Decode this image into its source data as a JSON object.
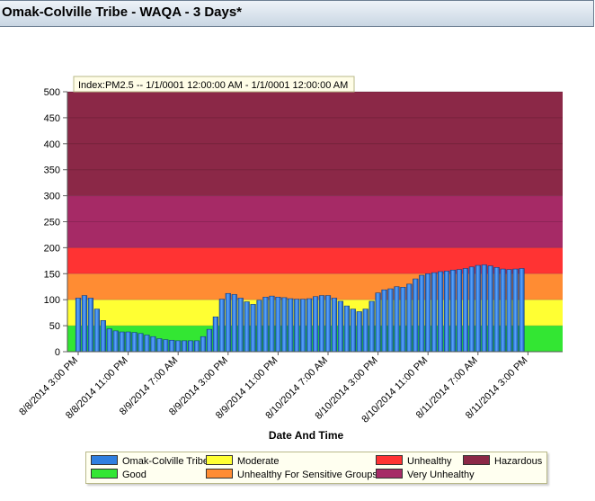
{
  "page": {
    "title": "Omak-Colville Tribe - WAQA - 3 Days*"
  },
  "chart_data": {
    "type": "bar",
    "index_label": "Index:PM2.5 -- 1/1/0001 12:00:00 AM  -  1/1/0001 12:00:00 AM",
    "xlabel": "Date And Time",
    "ylabel": "",
    "ylim": [
      0,
      500
    ],
    "yticks": [
      0,
      50,
      100,
      150,
      200,
      250,
      300,
      350,
      400,
      450,
      500
    ],
    "x_tick_labels": [
      "8/8/2014 3:00 PM",
      "8/8/2014 11:00 PM",
      "8/9/2014 7:00 AM",
      "8/9/2014 3:00 PM",
      "8/9/2014 11:00 PM",
      "8/10/2014 7:00 AM",
      "8/10/2014 3:00 PM",
      "8/10/2014 11:00 PM",
      "8/11/2014 7:00 AM",
      "8/11/2014 3:00 PM"
    ],
    "hours_per_bar": 1,
    "bands": [
      {
        "name": "Good",
        "from": 0,
        "to": 50,
        "color": "#33e633"
      },
      {
        "name": "Moderate",
        "from": 50,
        "to": 100,
        "color": "#ffff33"
      },
      {
        "name": "Unhealthy For Sensitive Groups",
        "from": 100,
        "to": 150,
        "color": "#ff8c33"
      },
      {
        "name": "Unhealthy",
        "from": 150,
        "to": 200,
        "color": "#ff3333"
      },
      {
        "name": "Very Unhealthy",
        "from": 200,
        "to": 300,
        "color": "#a62a66"
      },
      {
        "name": "Hazardous",
        "from": 300,
        "to": 500,
        "color": "#8b2847"
      }
    ],
    "series": [
      {
        "name": "Omak-Colville Tribe",
        "color": "#2f7fe0",
        "values": [
          103,
          108,
          103,
          82,
          60,
          44,
          40,
          38,
          38,
          37,
          35,
          32,
          29,
          25,
          23,
          22,
          21,
          21,
          21,
          21,
          29,
          43,
          67,
          101,
          112,
          110,
          103,
          96,
          91,
          99,
          105,
          107,
          105,
          104,
          102,
          101,
          101,
          102,
          106,
          108,
          108,
          103,
          97,
          88,
          82,
          77,
          82,
          97,
          113,
          119,
          121,
          125,
          124,
          130,
          140,
          147,
          150,
          152,
          154,
          155,
          157,
          158,
          160,
          163,
          166,
          167,
          165,
          162,
          159,
          158,
          159,
          160
        ]
      }
    ]
  },
  "legend": [
    {
      "label": "Omak-Colville Tribe",
      "color": "#2f7fe0"
    },
    {
      "label": "Moderate",
      "color": "#ffff33"
    },
    {
      "label": "Unhealthy",
      "color": "#ff3333"
    },
    {
      "label": "Hazardous",
      "color": "#8b2847"
    },
    {
      "label": "Good",
      "color": "#33e633"
    },
    {
      "label": "Unhealthy For Sensitive Groups",
      "color": "#ff8c33"
    },
    {
      "label": "Very Unhealthy",
      "color": "#a62a66"
    }
  ]
}
